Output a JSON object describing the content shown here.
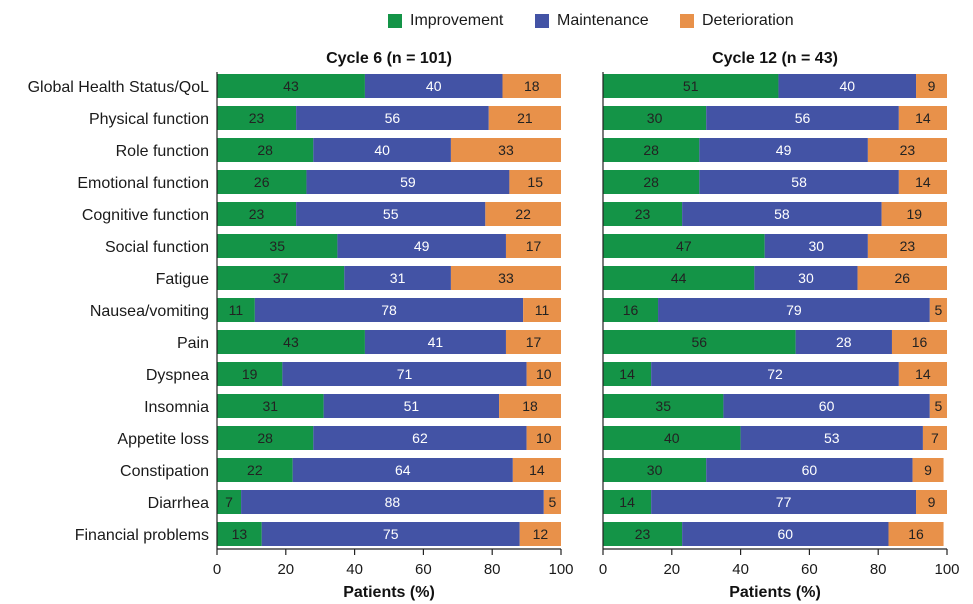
{
  "legend": {
    "items": [
      {
        "label": "Improvement",
        "color": "#149447"
      },
      {
        "label": "Maintenance",
        "color": "#4353a5"
      },
      {
        "label": "Deterioration",
        "color": "#e8914a"
      }
    ]
  },
  "chart_data": {
    "type": "bar",
    "orientation": "horizontal",
    "stacked": true,
    "categories": [
      "Global Health Status/QoL",
      "Physical function",
      "Role function",
      "Emotional function",
      "Cognitive function",
      "Social function",
      "Fatigue",
      "Nausea/vomiting",
      "Pain",
      "Dyspnea",
      "Insomnia",
      "Appetite loss",
      "Constipation",
      "Diarrhea",
      "Financial problems"
    ],
    "xlabel": "Patients (%)",
    "xlim": [
      0,
      100
    ],
    "xticks": [
      0,
      20,
      40,
      60,
      80,
      100
    ],
    "legend_position": "top",
    "panels": [
      {
        "title": "Cycle 6 (n = 101)",
        "series": [
          {
            "name": "Improvement",
            "values": [
              43,
              23,
              28,
              26,
              23,
              35,
              37,
              11,
              43,
              19,
              31,
              28,
              22,
              7,
              13
            ]
          },
          {
            "name": "Maintenance",
            "values": [
              40,
              56,
              40,
              59,
              55,
              49,
              31,
              78,
              41,
              71,
              51,
              62,
              64,
              88,
              75
            ]
          },
          {
            "name": "Deterioration",
            "values": [
              18,
              21,
              33,
              15,
              22,
              17,
              33,
              11,
              17,
              10,
              18,
              10,
              14,
              5,
              12
            ]
          }
        ]
      },
      {
        "title": "Cycle 12 (n = 43)",
        "series": [
          {
            "name": "Improvement",
            "values": [
              51,
              30,
              28,
              28,
              23,
              47,
              44,
              16,
              56,
              14,
              35,
              40,
              30,
              14,
              23
            ]
          },
          {
            "name": "Maintenance",
            "values": [
              40,
              56,
              49,
              58,
              58,
              30,
              30,
              79,
              28,
              72,
              60,
              53,
              60,
              77,
              60
            ]
          },
          {
            "name": "Deterioration",
            "values": [
              9,
              14,
              23,
              14,
              19,
              23,
              26,
              5,
              16,
              14,
              5,
              7,
              9,
              9,
              16
            ]
          }
        ]
      }
    ]
  }
}
